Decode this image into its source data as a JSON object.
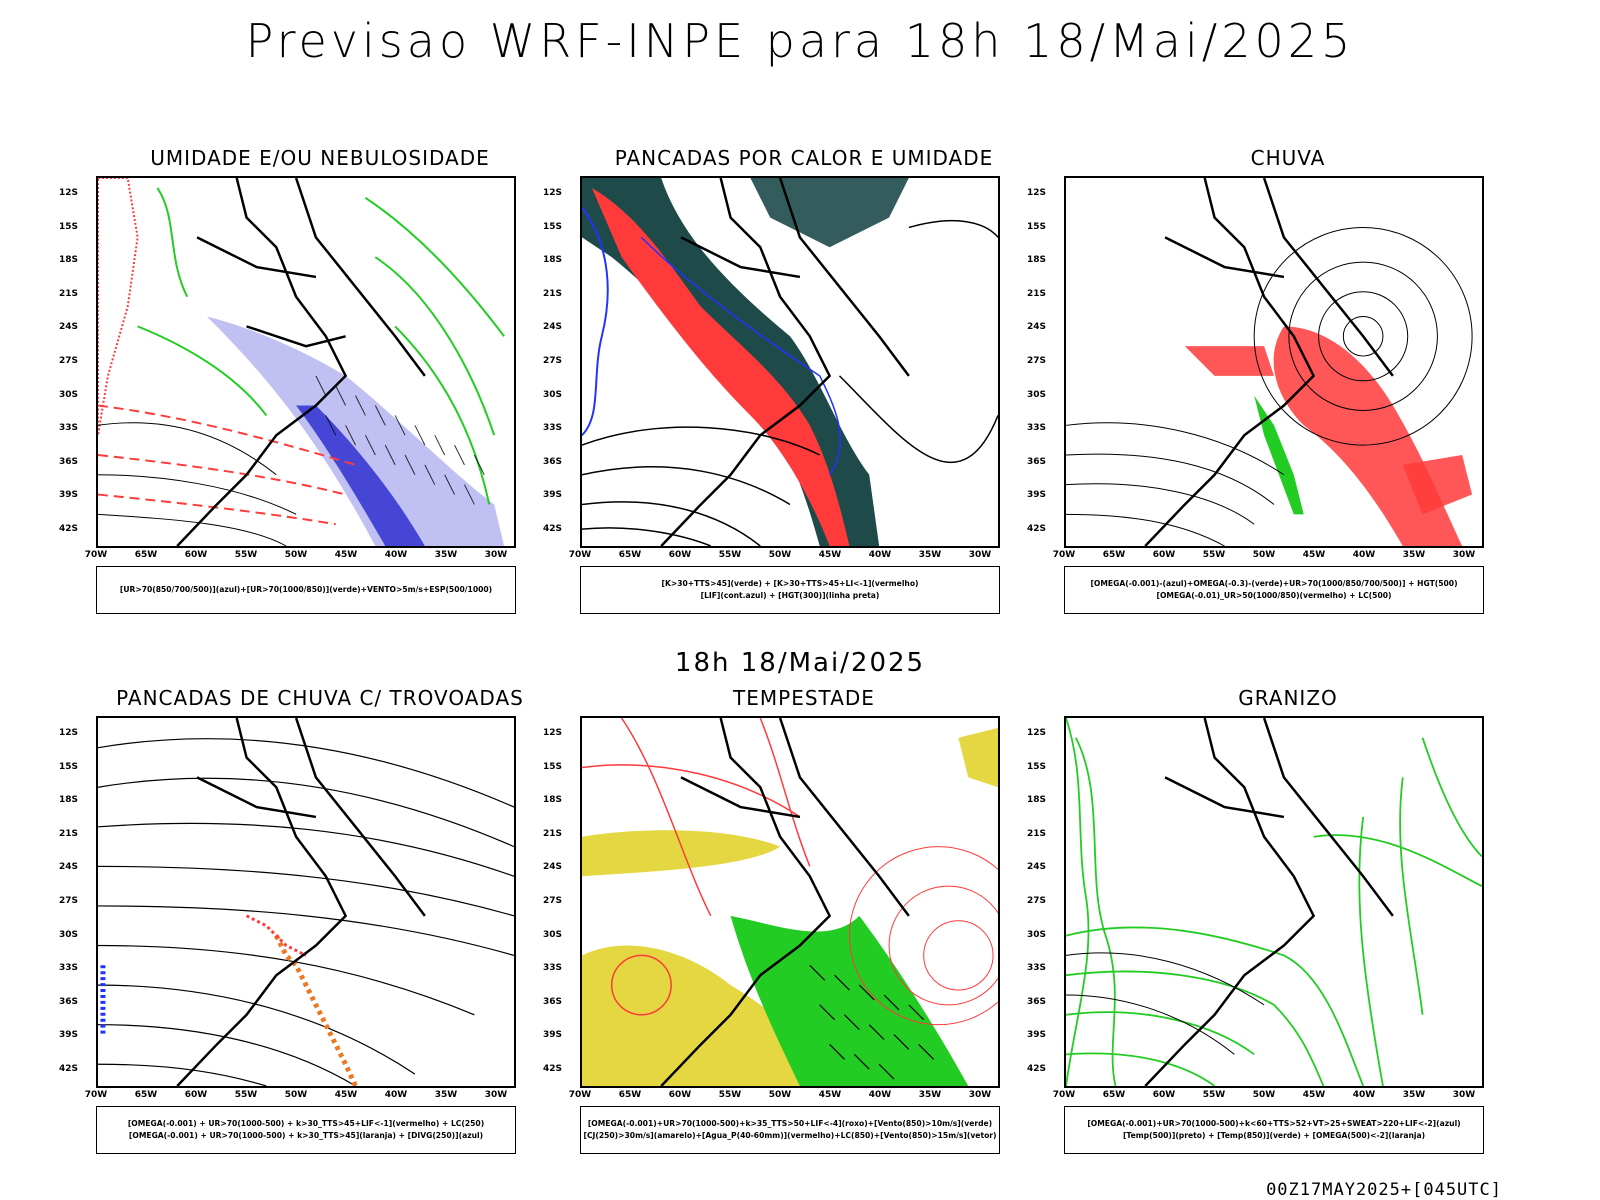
{
  "title": "Previsao WRF-INPE  para 18h 18/Mai/2025",
  "mid_title": "18h 18/Mai/2025",
  "footer": "00Z17MAY2025+[045UTC]",
  "axes": {
    "y_labels": [
      "12S",
      "15S",
      "18S",
      "21S",
      "24S",
      "27S",
      "30S",
      "33S",
      "36S",
      "39S",
      "42S"
    ],
    "x_labels": [
      "70W",
      "65W",
      "60W",
      "55W",
      "50W",
      "45W",
      "40W",
      "35W",
      "30W"
    ]
  },
  "panels": [
    {
      "title": "UMIDADE E/OU NEBULOSIDADE",
      "legend": [
        "[UR>70(850/700/500)](azul)+[UR>70(1000/850)](verde)+VENTO>5m/s+ESP(500/1000)"
      ]
    },
    {
      "title": "PANCADAS POR CALOR E UMIDADE",
      "legend": [
        "[K>30+TTS>45](verde)  +  [K>30+TTS>45+LI<-1](vermelho)",
        "[LIF](cont.azul)  +  [HGT(300)](linha preta)"
      ]
    },
    {
      "title": "CHUVA",
      "legend": [
        "[OMEGA(-0.001)-(azul)+OMEGA(-0.3)-(verde)+UR>70(1000/850/700/500)]  +  HGT(500)",
        "[OMEGA(-0.01)_UR>50(1000/850)(vermelho)  +  LC(500)"
      ]
    },
    {
      "title": "PANCADAS DE CHUVA C/ TROVOADAS",
      "legend": [
        "[OMEGA(-0.001)  +  UR>70(1000-500)  +  k>30_TTS>45+LIF<-1](vermelho)  +  LC(250)",
        "[OMEGA(-0.001)  +  UR>70(1000-500)  +  k>30_TTS>45](laranja)  +  [DIVG(250)](azul)"
      ]
    },
    {
      "title": "TEMPESTADE",
      "legend": [
        "[OMEGA(-0.001)+UR>70(1000-500)+k>35_TTS>50+LIF<-4](roxo)+[Vento(850)>10m/s](verde)",
        "[CJ(250)>30m/s](amarelo)+[Agua_P(40-60mm)](vermelho)+LC(850)+[Vento(850)>15m/s](vetor)"
      ]
    },
    {
      "title": "GRANIZO",
      "legend": [
        "[OMEGA(-0.001)+UR>70(1000-500)+k<60+TTS>52+VT>25+SWEAT>220+LIF<-2](azul)",
        "[Temp(500)](preto)  +  [Temp(850)](verde)  +  [OMEGA(500)<-2](laranja)"
      ]
    }
  ],
  "colors": {
    "red": "#ff3a3a",
    "green": "#22cc22",
    "blue": "#2233ff",
    "lavender": "#b0b0f0",
    "darkteal": "#1e4a4a",
    "yellow": "#e0d020",
    "orange": "#ee7722"
  }
}
